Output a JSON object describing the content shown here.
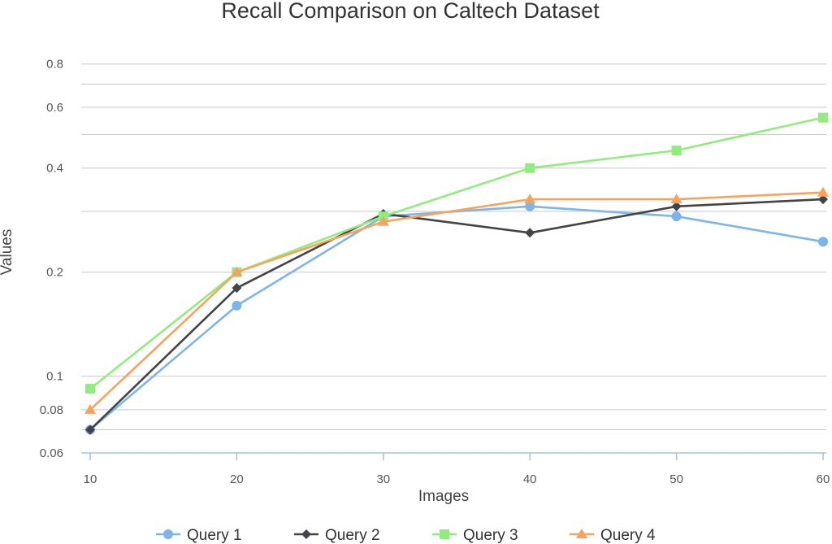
{
  "chart_data": {
    "type": "line",
    "title": "Recall Comparison on Caltech Dataset",
    "xlabel": "Images",
    "ylabel": "Values",
    "x": [
      10,
      20,
      30,
      40,
      50,
      60
    ],
    "x_ticks": [
      "10",
      "20",
      "30",
      "40",
      "50",
      "60"
    ],
    "y_scale": "log",
    "ylim": [
      0.06,
      0.9
    ],
    "y_ticks": [
      0.06,
      0.08,
      0.1,
      0.2,
      0.4,
      0.6,
      0.8
    ],
    "y_tick_labels": [
      "0.06",
      "0.08",
      "0.1",
      "0.2",
      "0.4",
      "0.6",
      "0.8"
    ],
    "y_minor_gridlines": [
      0.07,
      0.3,
      0.5,
      0.7
    ],
    "grid": true,
    "legend_position": "bottom",
    "series": [
      {
        "name": "Query 1",
        "color": "#7cb5ec",
        "marker": "circle",
        "values": [
          0.07,
          0.16,
          0.29,
          0.31,
          0.29,
          0.245
        ]
      },
      {
        "name": "Query 2",
        "color": "#434348",
        "marker": "diamond",
        "values": [
          0.07,
          0.18,
          0.295,
          0.26,
          0.31,
          0.325
        ]
      },
      {
        "name": "Query 3",
        "color": "#90ed7d",
        "marker": "square",
        "values": [
          0.092,
          0.2,
          0.29,
          0.4,
          0.45,
          0.56
        ]
      },
      {
        "name": "Query 4",
        "color": "#f7a35c",
        "marker": "triangle",
        "values": [
          0.08,
          0.2,
          0.28,
          0.325,
          0.325,
          0.34
        ]
      }
    ]
  }
}
